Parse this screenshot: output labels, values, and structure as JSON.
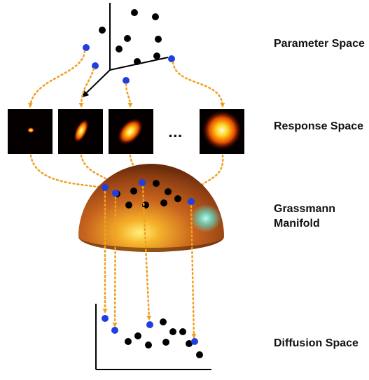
{
  "labels": {
    "parameter_space": "Parameter Space",
    "response_space": "Response Space",
    "grassmann_line1": "Grassmann",
    "grassmann_line2": "Manifold",
    "diffusion_space": "Diffusion Space",
    "ellipsis": "..."
  },
  "colors": {
    "highlight_point": "#1f3fe0",
    "point": "#000000",
    "arrow": "#f0a020",
    "axis": "#000000"
  }
}
